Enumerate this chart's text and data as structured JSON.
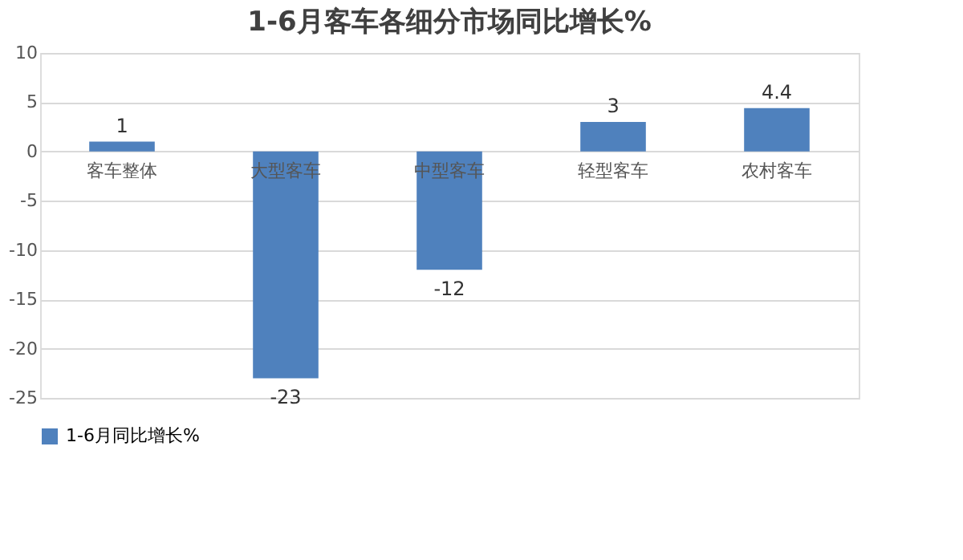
{
  "chart_data": {
    "type": "bar",
    "title": "1-6月客车各细分市场同比增长%",
    "categories": [
      "客车整体",
      "大型客车",
      "中型客车",
      "轻型客车",
      "农村客车"
    ],
    "series": [
      {
        "name": "1-6月同比增长%",
        "color": "#4f81bd",
        "values": [
          1,
          -23,
          -12,
          3,
          4.4
        ]
      }
    ],
    "ylim": [
      -25,
      10
    ],
    "yticks": [
      -25,
      -20,
      -15,
      -10,
      -5,
      0,
      5,
      10
    ],
    "grid": "y",
    "legend": "bottom",
    "data_labels": true
  }
}
